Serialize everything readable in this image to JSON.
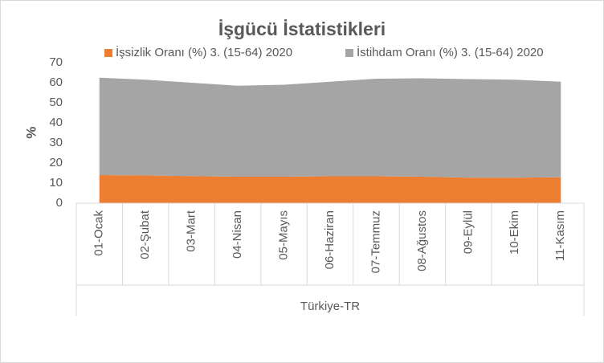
{
  "chart_data": {
    "type": "stacked_area",
    "title": "İşgücü İstatistikleri",
    "y_label": "%",
    "group_label": "Türkiye-TR",
    "categories": [
      "01-Ocak",
      "02-Şubat",
      "03-Mart",
      "04-Nisan",
      "05-Mayıs",
      "06-Haziran",
      "07-Temmuz",
      "08-Ağustos",
      "09-Eylül",
      "10-Ekim",
      "11-Kasım"
    ],
    "series": [
      {
        "name": "İşsizlik Oranı (%) 3. (15-64) 2020",
        "color": "#ed7d31",
        "values": [
          14.0,
          13.8,
          13.5,
          13.2,
          13.2,
          13.4,
          13.4,
          13.2,
          12.7,
          12.7,
          12.9
        ]
      },
      {
        "name": "İstihdam Oranı (%) 3. (15-64) 2020",
        "color": "#a5a5a5",
        "values": [
          48.5,
          47.7,
          46.5,
          45.3,
          45.8,
          47.1,
          48.6,
          49.0,
          49.1,
          48.8,
          47.6
        ]
      }
    ],
    "ylim": [
      0,
      70
    ],
    "yticks": [
      0,
      10,
      20,
      30,
      40,
      50,
      60,
      70
    ],
    "grid": false,
    "legend": "top"
  }
}
